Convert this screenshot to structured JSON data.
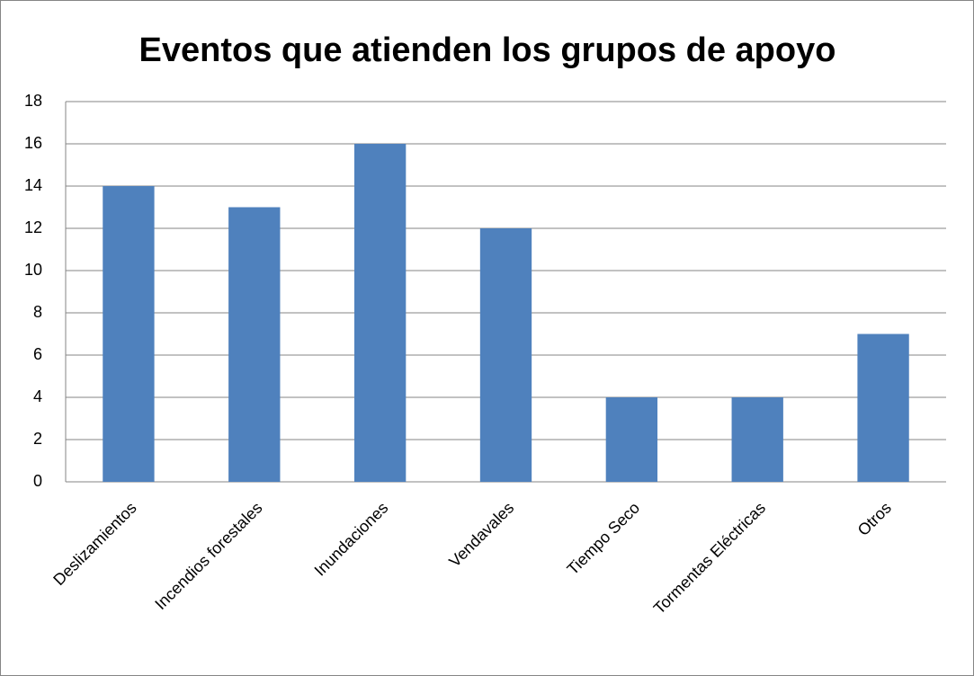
{
  "chart_data": {
    "type": "bar",
    "title": "Eventos que atienden los grupos de apoyo",
    "categories": [
      "Deslizamientos",
      "Incendios forestales",
      "Inundaciones",
      "Vendavales",
      "Tiempo Seco",
      "Tormentas Eléctricas",
      "Otros"
    ],
    "values": [
      14,
      13,
      16,
      12,
      4,
      4,
      7
    ],
    "color": "#4f81bd",
    "ylim": [
      0,
      18
    ],
    "yticks": [
      0,
      2,
      4,
      6,
      8,
      10,
      12,
      14,
      16,
      18
    ],
    "grid": true
  }
}
